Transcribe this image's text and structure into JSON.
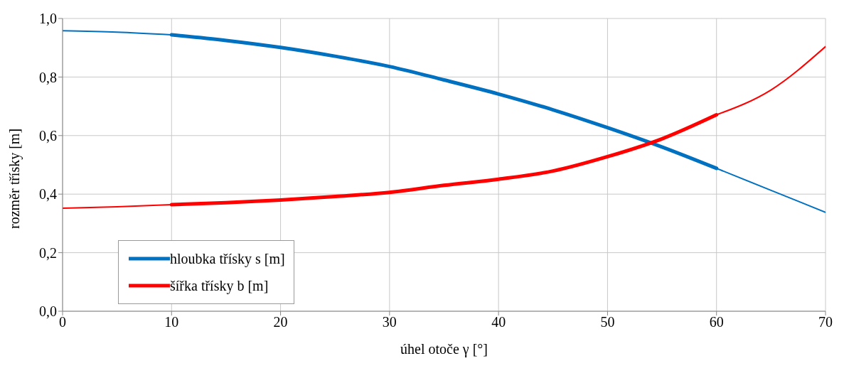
{
  "chart_data": {
    "type": "line",
    "xlabel": "úhel otoče γ [°]",
    "ylabel": "rozměr třísky [m]",
    "x": [
      0,
      5,
      10,
      15,
      20,
      25,
      30,
      35,
      40,
      45,
      50,
      55,
      60,
      65,
      70
    ],
    "series": [
      {
        "color": "#0070c0",
        "values": [
          0.958,
          0.953,
          0.944,
          null,
          null,
          null,
          null,
          null,
          null,
          null,
          null,
          null,
          0.488,
          0.413,
          0.338
        ]
      },
      {
        "name": "hloubka třísky s [m]",
        "color": "#0070c0",
        "values": [
          null,
          null,
          0.944,
          0.925,
          0.901,
          0.871,
          0.836,
          0.79,
          0.742,
          0.688,
          0.627,
          0.561,
          0.488,
          null,
          null
        ]
      },
      {
        "color": "#ff0000",
        "values": [
          0.352,
          0.357,
          0.364,
          null,
          null,
          null,
          null,
          null,
          null,
          null,
          null,
          null,
          0.671,
          0.756,
          0.904
        ]
      },
      {
        "name": "šířka třísky b [m]",
        "color": "#ff0000",
        "values": [
          null,
          null,
          0.364,
          0.371,
          0.38,
          0.392,
          0.406,
          0.43,
          0.451,
          0.479,
          0.528,
          0.589,
          0.671,
          null,
          null
        ]
      }
    ],
    "xlim": [
      0,
      70
    ],
    "xticks": [
      0,
      10,
      20,
      30,
      40,
      50,
      60,
      70
    ],
    "ylim": [
      0,
      1
    ],
    "yticks": [
      {
        "value": 0,
        "label": "0,0"
      },
      {
        "value": 0.2,
        "label": "0,2"
      },
      {
        "value": 0.4,
        "label": "0,4"
      },
      {
        "value": 0.6,
        "label": "0,6"
      },
      {
        "value": 0.8,
        "label": "0,8"
      },
      {
        "value": 1,
        "label": "1,0"
      }
    ],
    "grid": true,
    "legend": "bottom left",
    "marker": "none",
    "line_style": "solid"
  }
}
